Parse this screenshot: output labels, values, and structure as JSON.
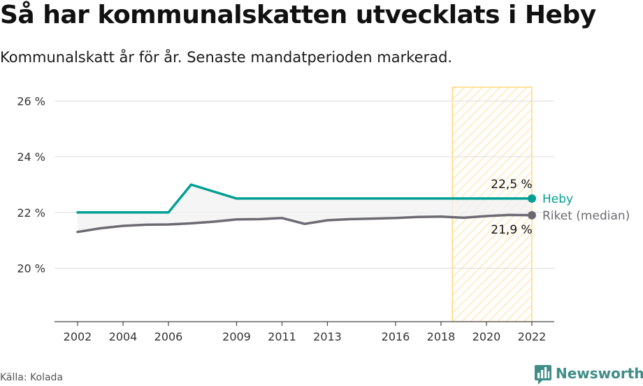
{
  "title": "Så har kommunalskatten utvecklats i Heby",
  "subtitle": "Kommunalskatt år för år. Senaste mandatperioden markerad.",
  "source": "Källa: Kolada",
  "brand": {
    "name": "Newsworthy",
    "icon": "newsworthy-bar-chart-logo"
  },
  "colors": {
    "heby": "#009f95",
    "riket": "#6d6a73",
    "highlight": "#ffcf63",
    "grid": "#dddddd",
    "area": "#f1f1f1"
  },
  "chart_data": {
    "type": "line",
    "x": [
      2002,
      2003,
      2004,
      2005,
      2006,
      2007,
      2008,
      2009,
      2010,
      2011,
      2012,
      2013,
      2014,
      2015,
      2016,
      2017,
      2018,
      2019,
      2020,
      2021,
      2022
    ],
    "series": [
      {
        "name": "Heby",
        "values": [
          22.0,
          22.0,
          22.0,
          22.0,
          22.0,
          23.0,
          22.75,
          22.5,
          22.5,
          22.5,
          22.5,
          22.5,
          22.5,
          22.5,
          22.5,
          22.5,
          22.5,
          22.5,
          22.5,
          22.5,
          22.5
        ],
        "end_label": "22,5 %"
      },
      {
        "name": "Riket (median)",
        "values": [
          21.3,
          21.43,
          21.52,
          21.56,
          21.57,
          21.61,
          21.67,
          21.75,
          21.76,
          21.8,
          21.59,
          21.72,
          21.76,
          21.78,
          21.8,
          21.84,
          21.85,
          21.81,
          21.87,
          21.91,
          21.9
        ],
        "end_label": "21,9 %"
      }
    ],
    "ylim": [
      18.0,
      26.5
    ],
    "y_ticks": [
      20,
      22,
      24,
      26
    ],
    "y_tick_labels": [
      "20 %",
      "22 %",
      "24 %",
      "26 %"
    ],
    "x_tick_labels": [
      "2002",
      "2004",
      "2006",
      "2009",
      "2011",
      "2013",
      "2016",
      "2018",
      "2020",
      "2022"
    ],
    "highlight_period": [
      2018.5,
      2022
    ],
    "grid": true,
    "legend": "line-end labels",
    "xlabel": "",
    "ylabel": ""
  }
}
